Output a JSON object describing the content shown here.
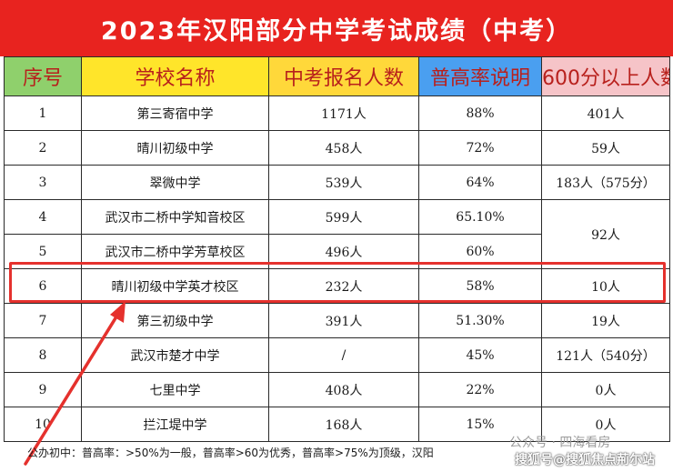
{
  "title": "2023年汉阳部分中学考试成绩（中考）",
  "headers": [
    "序号",
    "学校名称",
    "中考报名人数",
    "普高率说明",
    "600分以上人数"
  ],
  "rows": [
    {
      "seq": "1",
      "school": "第三寄宿中学",
      "count": "1171人",
      "rate": "88%",
      "over600": "401人"
    },
    {
      "seq": "2",
      "school": "晴川初级中学",
      "count": "458人",
      "rate": "72%",
      "over600": "59人"
    },
    {
      "seq": "3",
      "school": "翠微中学",
      "count": "539人",
      "rate": "64%",
      "over600": "183人（575分）"
    },
    {
      "seq": "4",
      "school": "武汉市二桥中学知音校区",
      "count": "599人",
      "rate": "65.10%",
      "over600": "92人"
    },
    {
      "seq": "5",
      "school": "武汉市二桥中学芳草校区",
      "count": "496人",
      "rate": "60%",
      "over600": ""
    },
    {
      "seq": "6",
      "school": "晴川初级中学英才校区",
      "count": "232人",
      "rate": "58%",
      "over600": "10人"
    },
    {
      "seq": "7",
      "school": "第三初级中学",
      "count": "391人",
      "rate": "51.30%",
      "over600": "19人"
    },
    {
      "seq": "8",
      "school": "武汉市楚才中学",
      "count": "/",
      "rate": "45%",
      "over600": "121人（540分）"
    },
    {
      "seq": "9",
      "school": "七里中学",
      "count": "408人",
      "rate": "22%",
      "over600": "0人"
    },
    {
      "seq": "10",
      "school": "拦江堤中学",
      "count": "168人",
      "rate": "15%",
      "over600": "0人"
    }
  ],
  "footnote": "公办初中：普高率：>50%为一般，普高率>60为优秀，普高率>75%为顶级，汉阳",
  "watermarks": [
    "公众号 · 四海看房",
    "搜狐号@搜狐焦点荊尓站"
  ],
  "colors": {
    "title_bg": "#e8231f",
    "header_seq": "#8fd06c",
    "header_school": "#ffe52a",
    "header_count": "#ffd83a",
    "header_rate": "#4a9ff0",
    "header_600": "#f6c4c8",
    "highlight": "#e5312d"
  }
}
